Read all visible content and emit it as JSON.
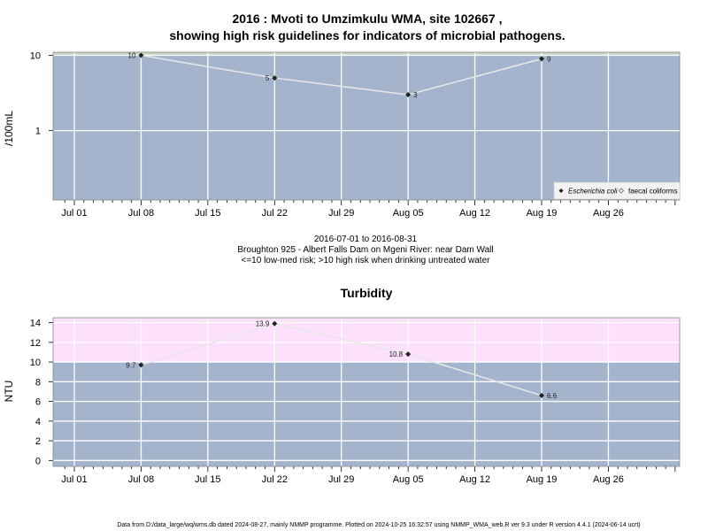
{
  "chart_data": [
    {
      "type": "line",
      "title_line1": "2016 : Mvoti to Umzimkulu WMA, site 102667 ,",
      "title_line2": "showing high risk guidelines for indicators of microbial pathogens.",
      "ylabel": "/100mL",
      "y_scale": "log",
      "ylim": [
        0.12,
        11
      ],
      "y_ticks": [
        {
          "value": 1,
          "label": "1"
        },
        {
          "value": 10,
          "label": "10"
        }
      ],
      "x_tick_labels": [
        "Jul 01",
        "Jul 08",
        "Jul 15",
        "Jul 22",
        "Jul 29",
        "Aug 05",
        "Aug 12",
        "Aug 19",
        "Aug 26"
      ],
      "series": [
        {
          "name": "Escherichia coli",
          "x": [
            "2016-07-08",
            "2016-07-22",
            "2016-08-05",
            "2016-08-19"
          ],
          "y": [
            10,
            5,
            3,
            9
          ],
          "labels": [
            "10",
            "5",
            "3",
            "9"
          ]
        }
      ],
      "legend": [
        "Escherichia coli",
        "faecal coliforms"
      ],
      "legend_position": "bottom-right",
      "risk_band": {
        "from": 10,
        "to": 11,
        "color": "#c8d4c2"
      },
      "background_color": "#a3b4cc",
      "caption": [
        "2016-07-01 to 2016-08-31",
        "Broughton 925 - Albert Falls Dam on Mgeni River: near Dam Wall",
        "<=10 low-med risk; >10 high risk when drinking untreated water"
      ]
    },
    {
      "type": "line",
      "title": "Turbidity",
      "ylabel": "NTU",
      "ylim": [
        -0.6,
        14.5
      ],
      "y_ticks": [
        0,
        2,
        4,
        6,
        8,
        10,
        12,
        14
      ],
      "x_tick_labels": [
        "Jul 01",
        "Jul 08",
        "Jul 15",
        "Jul 22",
        "Jul 29",
        "Aug 05",
        "Aug 12",
        "Aug 19",
        "Aug 26"
      ],
      "series": [
        {
          "x": [
            "2016-07-08",
            "2016-07-22",
            "2016-08-05",
            "2016-08-19"
          ],
          "y": [
            9.7,
            13.9,
            10.8,
            6.6
          ],
          "labels": [
            "9.7",
            "13.9",
            "10.8",
            "6.6"
          ]
        }
      ],
      "risk_band": {
        "from": 10,
        "to": 14.5,
        "color": "#fce0fc"
      },
      "background_color": "#a3b4cc"
    }
  ],
  "footer": "Data from D:/data_large/wq/wms.db dated 2024-08-27, mainly NMMP programme. Plotted on 2024-10-25 16:32:57 using NMMP_WMA_web.R ver 9.3 under R version 4.4.1 (2024-06-14 ucrt)"
}
